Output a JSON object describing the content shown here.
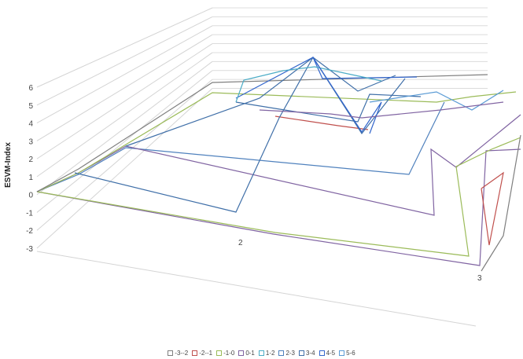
{
  "chart_data": {
    "type": "surface-3d-wireframe",
    "title": "",
    "ylabel": "ESVM-Index",
    "z_ticks": [
      "-3",
      "-2",
      "-1",
      "0",
      "1",
      "2",
      "3",
      "4",
      "5",
      "6"
    ],
    "zlim": [
      -3,
      6
    ],
    "x_ticks": [
      "2",
      "3"
    ],
    "grid": true,
    "legend_position": "bottom",
    "legend": [
      "-3--2",
      "-2--1",
      "-1-0",
      "0-1",
      "1-2",
      "2-3",
      "3-4",
      "4-5",
      "5-6"
    ],
    "series": [
      {
        "name": "-3--2",
        "color": "#7f7f7f"
      },
      {
        "name": "-2--1",
        "color": "#c0504d"
      },
      {
        "name": "-1-0",
        "color": "#9bbb59"
      },
      {
        "name": "0-1",
        "color": "#8064a2"
      },
      {
        "name": "1-2",
        "color": "#4bacc6"
      },
      {
        "name": "2-3",
        "color": "#4f81bd"
      },
      {
        "name": "3-4",
        "color": "#3f6fa8"
      },
      {
        "name": "4-5",
        "color": "#3366cc"
      },
      {
        "name": "5-6",
        "color": "#5b9bd5"
      }
    ]
  }
}
